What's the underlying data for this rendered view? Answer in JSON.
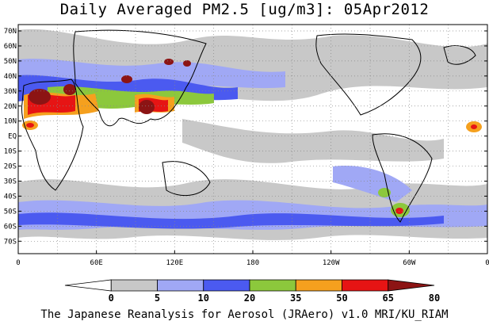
{
  "title": "Daily Averaged PM2.5 [ug/m3]: 05Apr2012",
  "footer": "The Japanese Reanalysis for Aerosol (JRAero) v1.0 MRI/KU_RIAM",
  "lat_labels": [
    "70N",
    "60N",
    "50N",
    "40N",
    "30N",
    "20N",
    "10N",
    "EQ",
    "10S",
    "20S",
    "30S",
    "40S",
    "50S",
    "60S",
    "70S"
  ],
  "lon_labels": [
    "0",
    "60E",
    "120E",
    "180",
    "120W",
    "60W",
    "0"
  ],
  "colorbar": {
    "ticks": [
      "0",
      "5",
      "10",
      "20",
      "35",
      "50",
      "65",
      "80"
    ],
    "colors": [
      "#ffffff",
      "#c8c8c8",
      "#a0a8f5",
      "#4b5af0",
      "#8cc83c",
      "#f5a01e",
      "#e61414",
      "#8c1414"
    ]
  }
}
